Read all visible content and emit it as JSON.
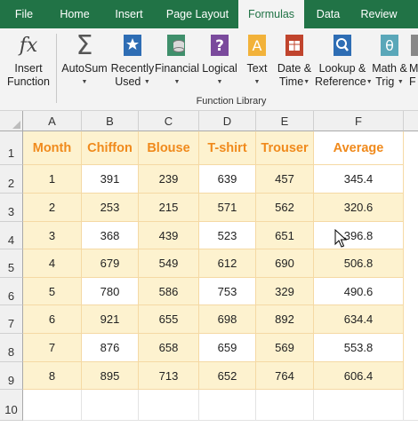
{
  "tabs": [
    "File",
    "Home",
    "Insert",
    "Page Layout",
    "Formulas",
    "Data",
    "Review"
  ],
  "active_tab": "Formulas",
  "ribbon": {
    "group_name": "Function Library",
    "insert_function": [
      "Insert",
      "Function"
    ],
    "buttons": [
      {
        "line1": "AutoSum",
        "line2": "",
        "icon": "sigma-icon"
      },
      {
        "line1": "Recently",
        "line2": "Used",
        "icon": "star-book-icon"
      },
      {
        "line1": "Financial",
        "line2": "",
        "icon": "coins-book-icon"
      },
      {
        "line1": "Logical",
        "line2": "",
        "icon": "question-book-icon"
      },
      {
        "line1": "Text",
        "line2": "",
        "icon": "letter-a-book-icon"
      },
      {
        "line1": "Date &",
        "line2": "Time",
        "icon": "calendar-book-icon"
      },
      {
        "line1": "Lookup &",
        "line2": "Reference",
        "icon": "magnifier-book-icon"
      },
      {
        "line1": "Math &",
        "line2": "Trig",
        "icon": "theta-book-icon"
      },
      {
        "line1": "M",
        "line2": "F",
        "icon": "more-functions-icon"
      }
    ]
  },
  "columns": [
    "A",
    "B",
    "C",
    "D",
    "E",
    "F"
  ],
  "rows": [
    "1",
    "2",
    "3",
    "4",
    "5",
    "6",
    "7",
    "8",
    "9",
    "10"
  ],
  "table": {
    "headers": [
      "Month",
      "Chiffon",
      "Blouse",
      "T-shirt",
      "Trouser",
      "Average"
    ],
    "rows": [
      [
        "1",
        "391",
        "239",
        "639",
        "457",
        "345.4"
      ],
      [
        "2",
        "253",
        "215",
        "571",
        "562",
        "320.6"
      ],
      [
        "3",
        "368",
        "439",
        "523",
        "651",
        "396.8"
      ],
      [
        "4",
        "679",
        "549",
        "612",
        "690",
        "506.8"
      ],
      [
        "5",
        "780",
        "586",
        "753",
        "329",
        "490.6"
      ],
      [
        "6",
        "921",
        "655",
        "698",
        "892",
        "634.4"
      ],
      [
        "7",
        "876",
        "658",
        "659",
        "569",
        "553.8"
      ],
      [
        "8",
        "895",
        "713",
        "652",
        "764",
        "606.4"
      ]
    ]
  },
  "colors": {
    "ribbon_green": "#217346",
    "header_text": "#f08a1c",
    "cell_fill": "#fdf2cf",
    "cell_border": "#f5d9a4"
  }
}
